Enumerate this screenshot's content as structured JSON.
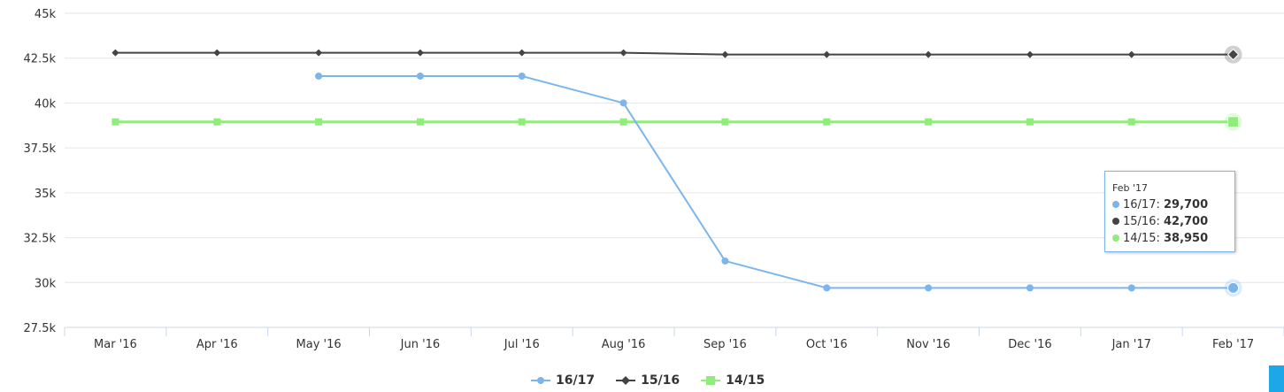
{
  "chart_data": {
    "type": "line",
    "categories": [
      "Mar '16",
      "Apr '16",
      "May '16",
      "Jun '16",
      "Jul '16",
      "Aug '16",
      "Sep '16",
      "Oct '16",
      "Nov '16",
      "Dec '16",
      "Jan '17",
      "Feb '17"
    ],
    "ylim": [
      27500,
      45000
    ],
    "yticks": [
      27500,
      30000,
      32500,
      35000,
      37500,
      40000,
      42500,
      45000
    ],
    "ytick_labels": [
      "27.5k",
      "30k",
      "32.5k",
      "35k",
      "37.5k",
      "40k",
      "42.5k",
      "45k"
    ],
    "grid": true,
    "legend_position": "bottom-center",
    "series": [
      {
        "name": "16/17",
        "color": "#7cb5ec",
        "marker": "circle",
        "values": [
          null,
          null,
          41500,
          41500,
          41500,
          40000,
          31200,
          29700,
          29700,
          29700,
          29700,
          29700
        ]
      },
      {
        "name": "15/16",
        "color": "#434348",
        "marker": "diamond",
        "values": [
          42800,
          42800,
          42800,
          42800,
          42800,
          42800,
          42700,
          42700,
          42700,
          42700,
          42700,
          42700
        ]
      },
      {
        "name": "14/15",
        "color": "#90ed7d",
        "marker": "square",
        "values": [
          38950,
          38950,
          38950,
          38950,
          38950,
          38950,
          38950,
          38950,
          38950,
          38950,
          38950,
          38950
        ]
      }
    ]
  },
  "tooltip": {
    "header": "Feb '17",
    "rows": [
      {
        "label": "16/17: ",
        "value": "29,700",
        "color": "#7cb5ec"
      },
      {
        "label": "15/16: ",
        "value": "42,700",
        "color": "#434348"
      },
      {
        "label": "14/15: ",
        "value": "38,950",
        "color": "#90ed7d"
      }
    ]
  }
}
